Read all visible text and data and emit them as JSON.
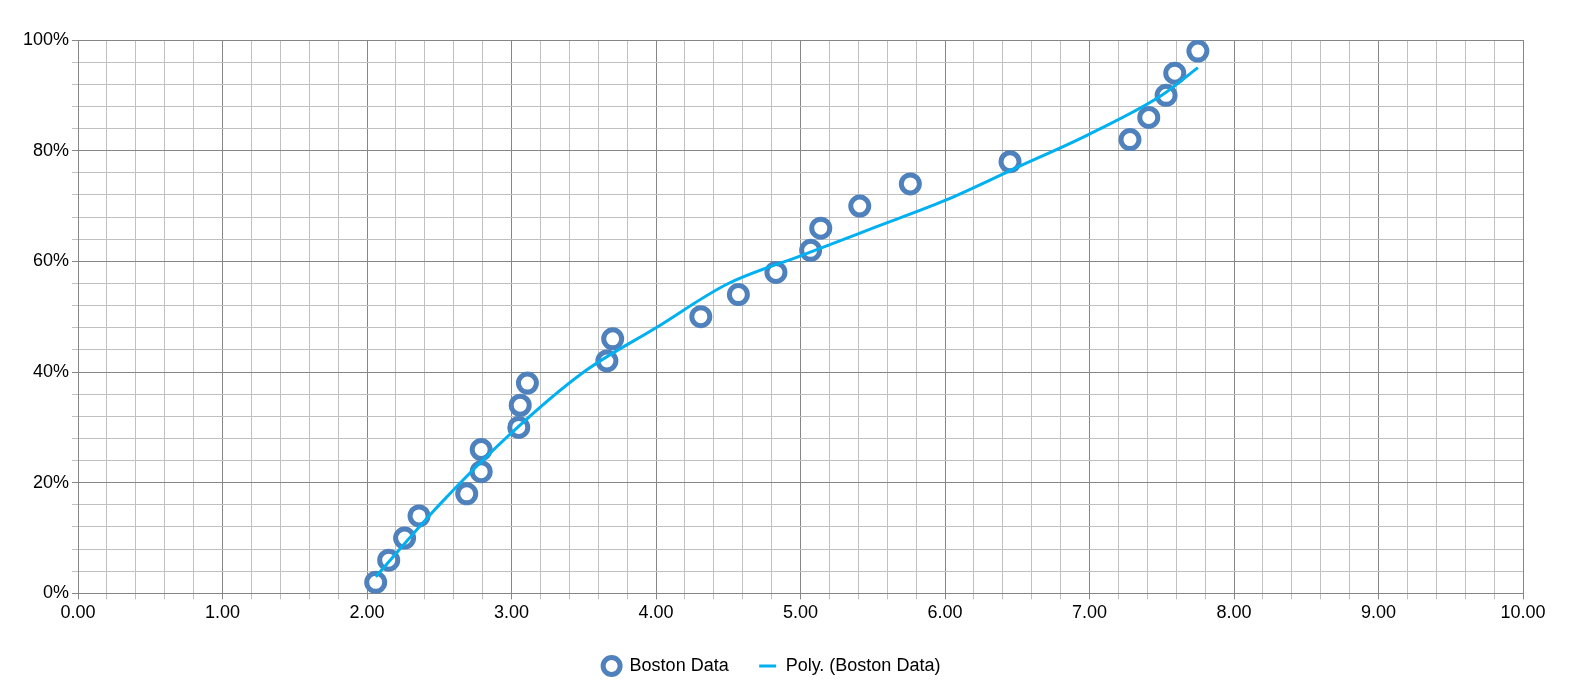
{
  "chart_data": {
    "type": "scatter",
    "legend": "bottom",
    "grid": true,
    "xlim": [
      0,
      10
    ],
    "ylim": [
      0,
      100
    ],
    "xticks": [
      {
        "value": 0,
        "label": "0.00"
      },
      {
        "value": 0.2,
        "label": null
      },
      {
        "value": 0.4,
        "label": null
      },
      {
        "value": 0.6,
        "label": null
      },
      {
        "value": 0.8,
        "label": null
      },
      {
        "value": 1,
        "label": "1.00"
      },
      {
        "value": 1.2,
        "label": null
      },
      {
        "value": 1.4,
        "label": null
      },
      {
        "value": 1.6,
        "label": null
      },
      {
        "value": 1.8,
        "label": null
      },
      {
        "value": 2,
        "label": "2.00"
      },
      {
        "value": 2.2,
        "label": null
      },
      {
        "value": 2.4,
        "label": null
      },
      {
        "value": 2.6,
        "label": null
      },
      {
        "value": 2.8,
        "label": null
      },
      {
        "value": 3,
        "label": "3.00"
      },
      {
        "value": 3.2,
        "label": null
      },
      {
        "value": 3.4,
        "label": null
      },
      {
        "value": 3.6,
        "label": null
      },
      {
        "value": 3.8,
        "label": null
      },
      {
        "value": 4,
        "label": "4.00"
      },
      {
        "value": 4.2,
        "label": null
      },
      {
        "value": 4.4,
        "label": null
      },
      {
        "value": 4.6,
        "label": null
      },
      {
        "value": 4.8,
        "label": null
      },
      {
        "value": 5,
        "label": "5.00"
      },
      {
        "value": 5.2,
        "label": null
      },
      {
        "value": 5.4,
        "label": null
      },
      {
        "value": 5.6,
        "label": null
      },
      {
        "value": 5.8,
        "label": null
      },
      {
        "value": 6,
        "label": "6.00"
      },
      {
        "value": 6.2,
        "label": null
      },
      {
        "value": 6.4,
        "label": null
      },
      {
        "value": 6.6,
        "label": null
      },
      {
        "value": 6.8,
        "label": null
      },
      {
        "value": 7,
        "label": "7.00"
      },
      {
        "value": 7.2,
        "label": null
      },
      {
        "value": 7.4,
        "label": null
      },
      {
        "value": 7.6,
        "label": null
      },
      {
        "value": 7.8,
        "label": null
      },
      {
        "value": 8,
        "label": "8.00"
      },
      {
        "value": 8.2,
        "label": null
      },
      {
        "value": 8.4,
        "label": null
      },
      {
        "value": 8.6,
        "label": null
      },
      {
        "value": 8.8,
        "label": null
      },
      {
        "value": 9,
        "label": "9.00"
      },
      {
        "value": 9.2,
        "label": null
      },
      {
        "value": 9.4,
        "label": null
      },
      {
        "value": 9.6,
        "label": null
      },
      {
        "value": 9.8,
        "label": null
      },
      {
        "value": 10,
        "label": "10.00"
      }
    ],
    "yticks": [
      {
        "value": 0,
        "label": "0%"
      },
      {
        "value": 4,
        "label": null
      },
      {
        "value": 8,
        "label": null
      },
      {
        "value": 12,
        "label": null
      },
      {
        "value": 16,
        "label": null
      },
      {
        "value": 20,
        "label": "20%"
      },
      {
        "value": 24,
        "label": null
      },
      {
        "value": 28,
        "label": null
      },
      {
        "value": 32,
        "label": null
      },
      {
        "value": 36,
        "label": null
      },
      {
        "value": 40,
        "label": "40%"
      },
      {
        "value": 44,
        "label": null
      },
      {
        "value": 48,
        "label": null
      },
      {
        "value": 52,
        "label": null
      },
      {
        "value": 56,
        "label": null
      },
      {
        "value": 60,
        "label": "60%"
      },
      {
        "value": 64,
        "label": null
      },
      {
        "value": 68,
        "label": null
      },
      {
        "value": 72,
        "label": null
      },
      {
        "value": 76,
        "label": null
      },
      {
        "value": 80,
        "label": "80%"
      },
      {
        "value": 84,
        "label": null
      },
      {
        "value": 88,
        "label": null
      },
      {
        "value": 92,
        "label": null
      },
      {
        "value": 96,
        "label": null
      },
      {
        "value": 100,
        "label": "100%"
      }
    ],
    "series": [
      {
        "name": "Boston Data",
        "marker": "circle",
        "color": "#4f81bd",
        "x": [
          2.06,
          2.15,
          2.26,
          2.36,
          2.69,
          2.79,
          2.79,
          3.05,
          3.06,
          3.11,
          3.66,
          3.7,
          4.31,
          4.57,
          4.83,
          5.07,
          5.14,
          5.41,
          5.76,
          6.45,
          7.28,
          7.41,
          7.53,
          7.59,
          7.75
        ],
        "values": [
          2,
          6,
          10,
          14,
          18,
          22,
          26,
          30,
          34,
          38,
          42,
          46,
          50,
          54,
          58,
          62,
          66,
          70,
          74,
          78,
          82,
          86,
          90,
          94,
          98
        ]
      },
      {
        "name": "Poly. (Boston Data)",
        "type": "line",
        "marker": "none",
        "color": "#00b0f0",
        "x": [
          2.06,
          2.5,
          3,
          3.5,
          4,
          4.5,
          5,
          5.5,
          6,
          6.5,
          7,
          7.5,
          7.75
        ],
        "values": [
          3,
          16,
          29,
          40,
          48,
          56,
          61,
          66,
          71,
          77,
          83,
          90,
          95
        ]
      }
    ]
  }
}
